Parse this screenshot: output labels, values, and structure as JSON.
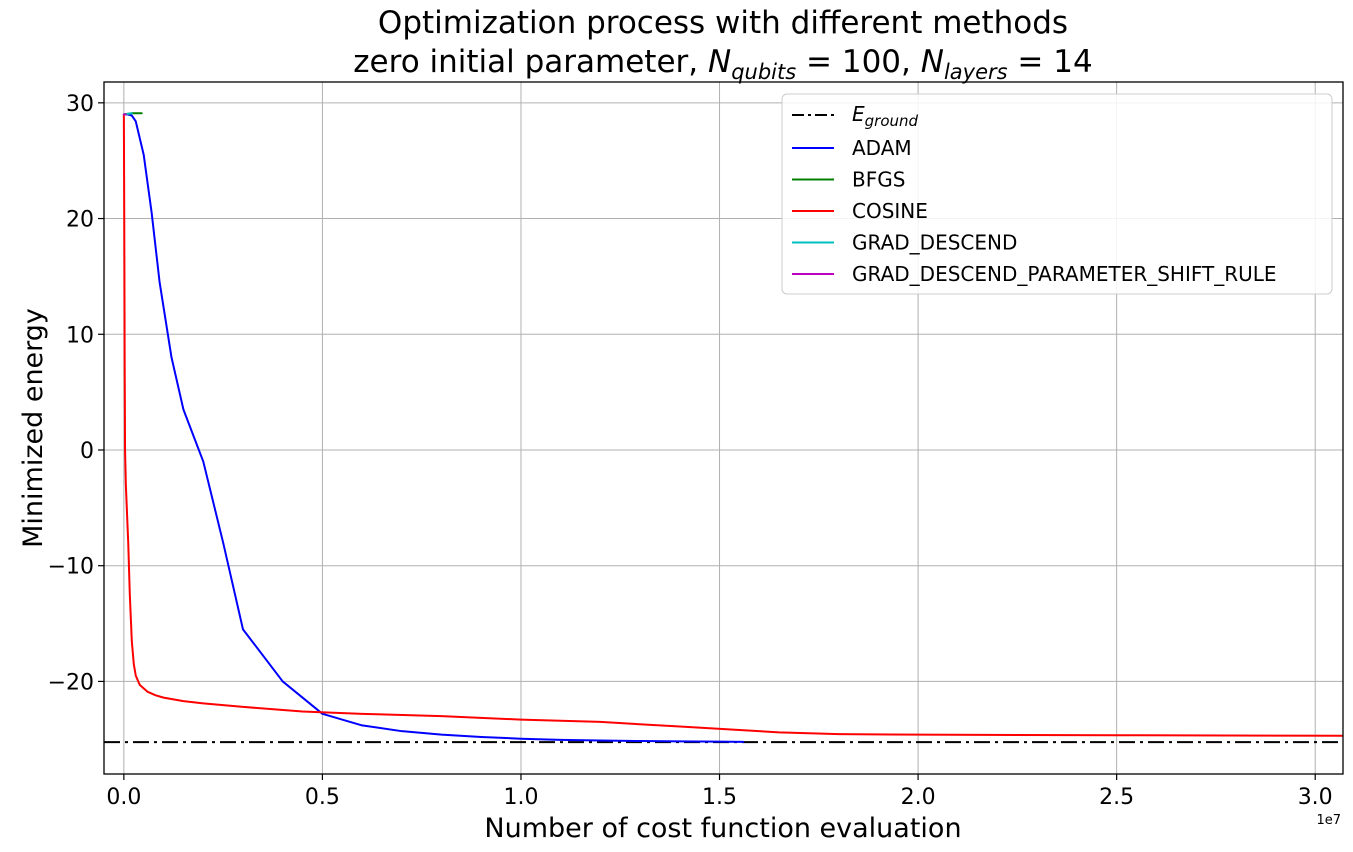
{
  "chart_data": {
    "type": "line",
    "title_line1": "Optimization process with different methods",
    "title_line2": {
      "prefix": "zero initial parameter, ",
      "n": "N",
      "qubits_sub": "qubits",
      "qubits_value": " = 100, ",
      "layers_sub": "layers",
      "layers_value": " = 14"
    },
    "xlabel": "Number of cost function evaluation",
    "ylabel": "Minimized energy",
    "x_offset_text": "1e7",
    "x_scale": 10000000,
    "xlim": [
      -0.05,
      3.07
    ],
    "ylim": [
      -28.0,
      31.8
    ],
    "xticks": [
      {
        "value": 0.0,
        "label": "0.0"
      },
      {
        "value": 0.5,
        "label": "0.5"
      },
      {
        "value": 1.0,
        "label": "1.0"
      },
      {
        "value": 1.5,
        "label": "1.5"
      },
      {
        "value": 2.0,
        "label": "2.0"
      },
      {
        "value": 2.5,
        "label": "2.5"
      },
      {
        "value": 3.0,
        "label": "3.0"
      }
    ],
    "yticks": [
      {
        "value": 30,
        "label": "30"
      },
      {
        "value": 20,
        "label": "20"
      },
      {
        "value": 10,
        "label": "10"
      },
      {
        "value": 0,
        "label": "0"
      },
      {
        "value": -10,
        "label": "−10"
      },
      {
        "value": -20,
        "label": "−20"
      }
    ],
    "grid": true,
    "legend_position": "top-right",
    "ground_energy": {
      "label_main": "E",
      "label_sub": "ground",
      "value": -25.25,
      "color": "#000000",
      "style": "dashdot"
    },
    "series": [
      {
        "name": "ADAM",
        "color": "#0000ff",
        "x": [
          0.0,
          0.01,
          0.02,
          0.03,
          0.05,
          0.07,
          0.09,
          0.12,
          0.15,
          0.2,
          0.25,
          0.3,
          0.4,
          0.5,
          0.6,
          0.7,
          0.8,
          0.9,
          1.0,
          1.1,
          1.2,
          1.3,
          1.4,
          1.5,
          1.56
        ],
        "y": [
          29.0,
          29.0,
          28.9,
          28.4,
          25.5,
          20.5,
          14.5,
          8.0,
          3.5,
          -1.0,
          -8.0,
          -15.5,
          -20.0,
          -22.8,
          -23.8,
          -24.3,
          -24.6,
          -24.8,
          -24.95,
          -25.05,
          -25.1,
          -25.15,
          -25.18,
          -25.2,
          -25.22
        ]
      },
      {
        "name": "BFGS",
        "color": "#008000",
        "x": [
          0.0,
          0.02,
          0.035,
          0.045
        ],
        "y": [
          29.0,
          29.1,
          29.1,
          29.1
        ]
      },
      {
        "name": "COSINE",
        "color": "#ff0000",
        "x": [
          0.0,
          0.001,
          0.002,
          0.003,
          0.005,
          0.008,
          0.011,
          0.015,
          0.02,
          0.025,
          0.03,
          0.04,
          0.06,
          0.08,
          0.1,
          0.15,
          0.2,
          0.3,
          0.45,
          0.6,
          0.8,
          1.0,
          1.2,
          1.4,
          1.55,
          1.65,
          1.8,
          2.0,
          2.5,
          3.07
        ],
        "y": [
          29.0,
          20.0,
          8.0,
          0.0,
          -3.0,
          -5.5,
          -8.0,
          -12.5,
          -16.5,
          -18.5,
          -19.5,
          -20.3,
          -20.9,
          -21.2,
          -21.4,
          -21.7,
          -21.9,
          -22.2,
          -22.6,
          -22.8,
          -23.0,
          -23.3,
          -23.5,
          -23.9,
          -24.2,
          -24.4,
          -24.55,
          -24.6,
          -24.65,
          -24.7
        ]
      },
      {
        "name": "GRAD_DESCEND",
        "color": "#00bfbf",
        "x": [
          0.0,
          0.01,
          0.02
        ],
        "y": [
          29.0,
          29.05,
          29.1
        ]
      },
      {
        "name": "GRAD_DESCEND_PARAMETER_SHIFT_RULE",
        "color": "#bf00bf",
        "x": [
          0.0,
          0.005
        ],
        "y": [
          29.0,
          29.0
        ]
      }
    ]
  }
}
